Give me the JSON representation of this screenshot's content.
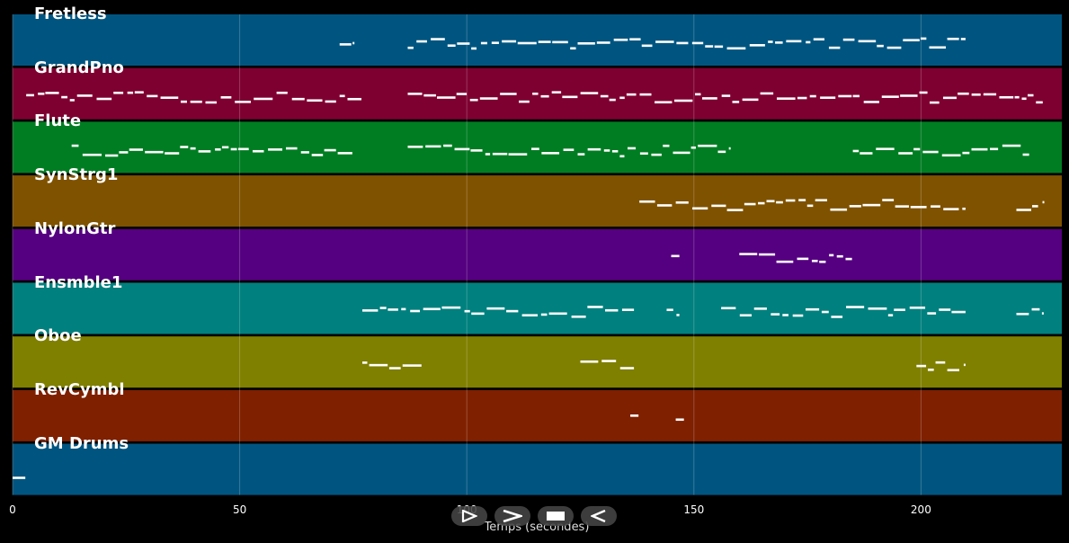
{
  "tracks": [
    {
      "name": "Fretless",
      "color": "#005580"
    },
    {
      "name": "GrandPno",
      "color": "#7e0030"
    },
    {
      "name": "Flute",
      "color": "#007d22"
    },
    {
      "name": "SynStrg1",
      "color": "#7f5200"
    },
    {
      "name": "NylonGtr",
      "color": "#550080"
    },
    {
      "name": "Ensmble1",
      "color": "#00807e"
    },
    {
      "name": "Oboe",
      "color": "#7f7f00"
    },
    {
      "name": "RevCymbl",
      "color": "#7f2000"
    },
    {
      "name": "GM Drums",
      "color": "#005580"
    }
  ],
  "axis": {
    "label": "Temps (secondes)",
    "ticks": [
      0,
      50,
      100,
      150,
      200
    ],
    "range": [
      0,
      231
    ]
  },
  "controls": [
    {
      "name": "play-outline-icon"
    },
    {
      "name": "chevron-right-icon"
    },
    {
      "name": "stop-icon"
    },
    {
      "name": "rewind-icon"
    }
  ],
  "notes": {
    "Fretless": [
      [
        72,
        75
      ],
      [
        87,
        210
      ]
    ],
    "GrandPno": [
      [
        3,
        77
      ],
      [
        87,
        227
      ]
    ],
    "Flute": [
      [
        13,
        75
      ],
      [
        87,
        158
      ],
      [
        185,
        224
      ]
    ],
    "SynStrg1": [
      [
        138,
        210
      ],
      [
        221,
        227
      ]
    ],
    "NylonGtr": [
      [
        145,
        147
      ],
      [
        160,
        185
      ]
    ],
    "Ensmble1": [
      [
        77,
        137
      ],
      [
        144,
        147
      ],
      [
        156,
        210
      ],
      [
        221,
        227
      ]
    ],
    "Oboe": [
      [
        77,
        91
      ],
      [
        125,
        137
      ],
      [
        199,
        210
      ]
    ],
    "RevCymbl": [
      [
        136,
        138
      ],
      [
        146,
        148
      ]
    ],
    "GM Drums": [
      [
        0,
        3
      ]
    ]
  }
}
